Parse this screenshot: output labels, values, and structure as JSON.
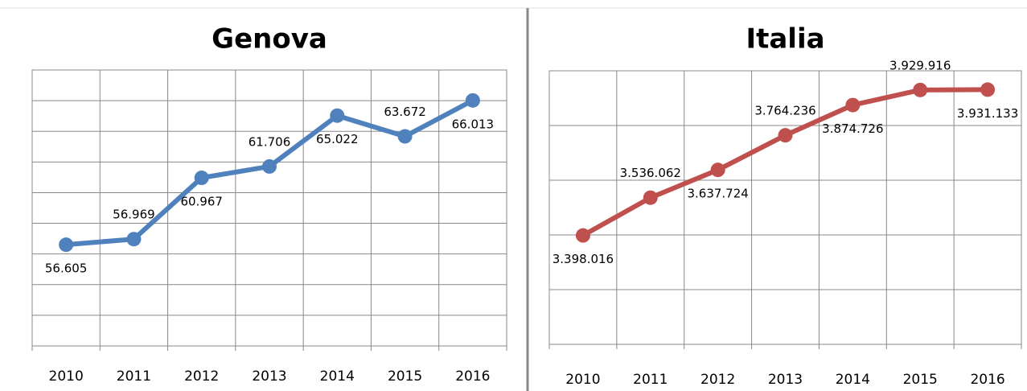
{
  "chart_data": [
    {
      "type": "line",
      "title": "Genova",
      "categories": [
        "2010",
        "2011",
        "2012",
        "2013",
        "2014",
        "2015",
        "2016"
      ],
      "series": [
        {
          "color": "#4f81bd",
          "values": [
            56605,
            56969,
            60967,
            61706,
            65022,
            63672,
            66013
          ],
          "value_labels": [
            "56.605",
            "56.969",
            "60.967",
            "61.706",
            "65.022",
            "63.672",
            "66.013"
          ]
        }
      ],
      "ylim": [
        50000,
        68000
      ],
      "yticks": [
        50000,
        52000,
        54000,
        56000,
        58000,
        60000,
        62000,
        64000,
        66000,
        68000
      ],
      "grid": true
    },
    {
      "type": "line",
      "title": "Italia",
      "categories": [
        "2010",
        "2011",
        "2012",
        "2013",
        "2014",
        "2015",
        "2016"
      ],
      "series": [
        {
          "color": "#c0504d",
          "values": [
            3398016,
            3536062,
            3637724,
            3764236,
            3874726,
            3929916,
            3931133
          ],
          "value_labels": [
            "3.398.016",
            "3.536.062",
            "3.637.724",
            "3.764.236",
            "3.874.726",
            "3.929.916",
            "3.931.133"
          ]
        }
      ],
      "ylim": [
        3000000,
        4000000
      ],
      "yticks": [
        3000000,
        3200000,
        3400000,
        3600000,
        3800000,
        4000000
      ],
      "grid": true
    }
  ]
}
